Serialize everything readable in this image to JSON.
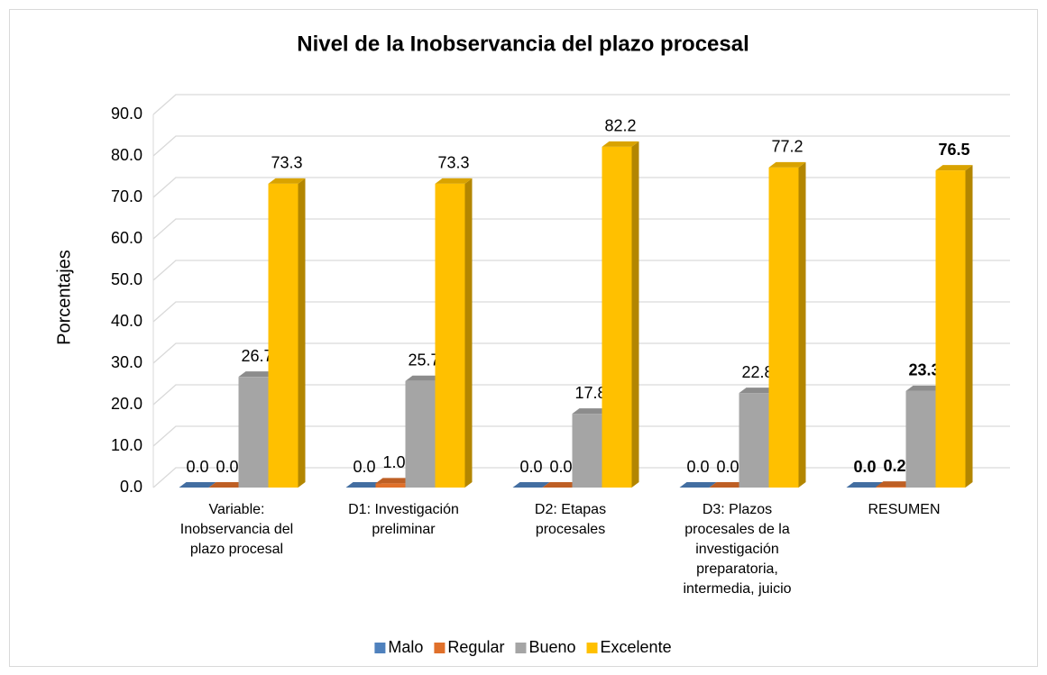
{
  "chart_data": {
    "type": "bar3d",
    "title": "Nivel de la Inobservancia del plazo procesal",
    "y_label": "Porcentajes",
    "categories": [
      "Variable: Inobservancia del plazo procesal",
      "D1: Investigación preliminar",
      "D2: Etapas procesales",
      "D3: Plazos procesales de la investigación preparatoria, intermedia, juicio",
      "RESUMEN"
    ],
    "series": [
      {
        "name": "Malo",
        "color": "#4f81bd",
        "values": [
          0,
          0,
          0,
          0,
          0
        ],
        "value_labels": [
          "0.0",
          "0.0",
          "0.0",
          "0.0",
          "0.0"
        ]
      },
      {
        "name": "Regular",
        "color": "#e0702a",
        "values": [
          0,
          1,
          0,
          0,
          0.2
        ],
        "value_labels": [
          "0.0",
          "1.0",
          "0.0",
          "0.0",
          "0.2"
        ]
      },
      {
        "name": "Bueno",
        "color": "#a5a5a5",
        "values": [
          26.7,
          25.7,
          17.8,
          22.8,
          23.3
        ]
      },
      {
        "name": "Excelente",
        "color": "#ffc000",
        "values": [
          73.3,
          73.3,
          82.2,
          77.2,
          76.5
        ]
      }
    ],
    "bold_value_labels": [
      false,
      false,
      false,
      false,
      true
    ],
    "ylim": [
      0,
      90
    ],
    "yticks": [
      {
        "value": 0,
        "label": "0.0"
      },
      {
        "value": 10,
        "label": "10.0"
      },
      {
        "value": 20,
        "label": "20.0"
      },
      {
        "value": 30,
        "label": "30.0"
      },
      {
        "value": 40,
        "label": "40.0"
      },
      {
        "value": 50,
        "label": "50.0"
      },
      {
        "value": 60,
        "label": "60.0"
      },
      {
        "value": 70,
        "label": "70.0"
      },
      {
        "value": 80,
        "label": "80.0"
      },
      {
        "value": 90,
        "label": "90.0"
      }
    ],
    "grid": true,
    "legend": "bottom"
  }
}
